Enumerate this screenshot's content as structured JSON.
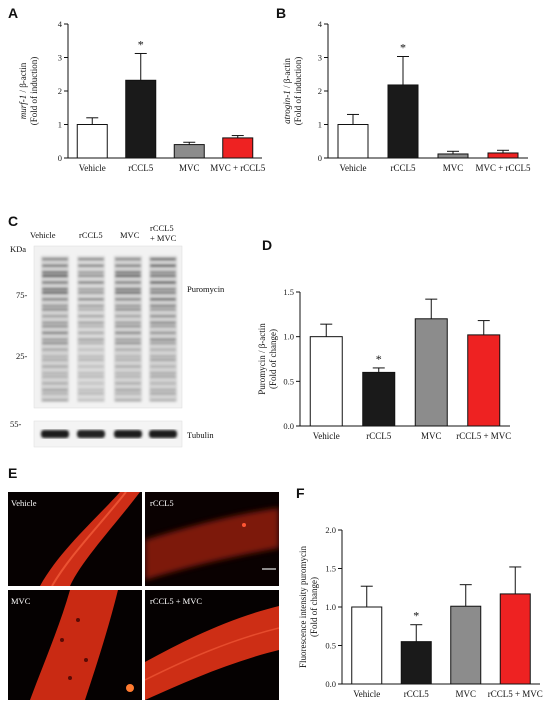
{
  "panels": {
    "A": {
      "label": "A",
      "chart_data": {
        "type": "bar",
        "categories": [
          "Vehicle",
          "rCCL5",
          "MVC",
          "MVC + rCCL5"
        ],
        "values": [
          1.0,
          2.32,
          0.4,
          0.6
        ],
        "errors": [
          0.2,
          0.8,
          0.07,
          0.07
        ],
        "colors": [
          "#ffffff",
          "#1a1a1a",
          "#8c8c8c",
          "#ee2222"
        ],
        "significance": [
          "",
          "*",
          "",
          ""
        ],
        "ylabel_italic": "murf-1",
        "ylabel_rest": " / β-actin",
        "ylabel_line2": "(Fold of induction)",
        "yticks": [
          "0",
          "1",
          "2",
          "3",
          "4"
        ],
        "ylim": [
          0,
          4
        ]
      }
    },
    "B": {
      "label": "B",
      "chart_data": {
        "type": "bar",
        "categories": [
          "Vehicle",
          "rCCL5",
          "MVC",
          "MVC + rCCL5"
        ],
        "values": [
          1.0,
          2.18,
          0.12,
          0.15
        ],
        "errors": [
          0.3,
          0.85,
          0.08,
          0.08
        ],
        "colors": [
          "#ffffff",
          "#1a1a1a",
          "#8c8c8c",
          "#ee2222"
        ],
        "significance": [
          "",
          "*",
          "",
          ""
        ],
        "ylabel_italic": "atrogin-1",
        "ylabel_rest": " / β-actin",
        "ylabel_line2": "(Fold of induction)",
        "yticks": [
          "0",
          "1",
          "2",
          "3",
          "4"
        ],
        "ylim": [
          0,
          4
        ]
      }
    },
    "C": {
      "label": "C",
      "lanes": [
        "Vehicle",
        "rCCL5",
        "MVC",
        "rCCL5",
        "+ MVC"
      ],
      "unit": "KDa",
      "markers": [
        "75-",
        "25-",
        "55-"
      ],
      "bands": [
        "Puromycin",
        "Tubulin"
      ]
    },
    "D": {
      "label": "D",
      "chart_data": {
        "type": "bar",
        "categories": [
          "Vehicle",
          "rCCL5",
          "MVC",
          "rCCL5 + MVC"
        ],
        "values": [
          1.0,
          0.6,
          1.2,
          1.02
        ],
        "errors": [
          0.14,
          0.05,
          0.22,
          0.16
        ],
        "colors": [
          "#ffffff",
          "#1a1a1a",
          "#8c8c8c",
          "#ee2222"
        ],
        "significance": [
          "",
          "*",
          "",
          ""
        ],
        "ylabel": "Puromycin / β-actin",
        "ylabel_line2": "(Fold of change)",
        "yticks": [
          "0.0",
          "0.5",
          "1.0",
          "1.5"
        ],
        "ylim": [
          0,
          1.5
        ]
      }
    },
    "E": {
      "label": "E",
      "images": [
        "Vehicle",
        "rCCL5",
        "MVC",
        "rCCL5 + MVC"
      ]
    },
    "F": {
      "label": "F",
      "chart_data": {
        "type": "bar",
        "categories": [
          "Vehicle",
          "rCCL5",
          "MVC",
          "rCCL5 + MVC"
        ],
        "values": [
          1.0,
          0.55,
          1.01,
          1.17
        ],
        "errors": [
          0.27,
          0.22,
          0.28,
          0.35
        ],
        "colors": [
          "#ffffff",
          "#1a1a1a",
          "#8c8c8c",
          "#ee2222"
        ],
        "significance": [
          "",
          "*",
          "",
          ""
        ],
        "ylabel": "Fluorescence intensity puromycin",
        "ylabel_line2": "(Fold of change)",
        "yticks": [
          "0.0",
          "0.5",
          "1.0",
          "1.5",
          "2.0"
        ],
        "ylim": [
          0,
          2.0
        ]
      }
    }
  }
}
